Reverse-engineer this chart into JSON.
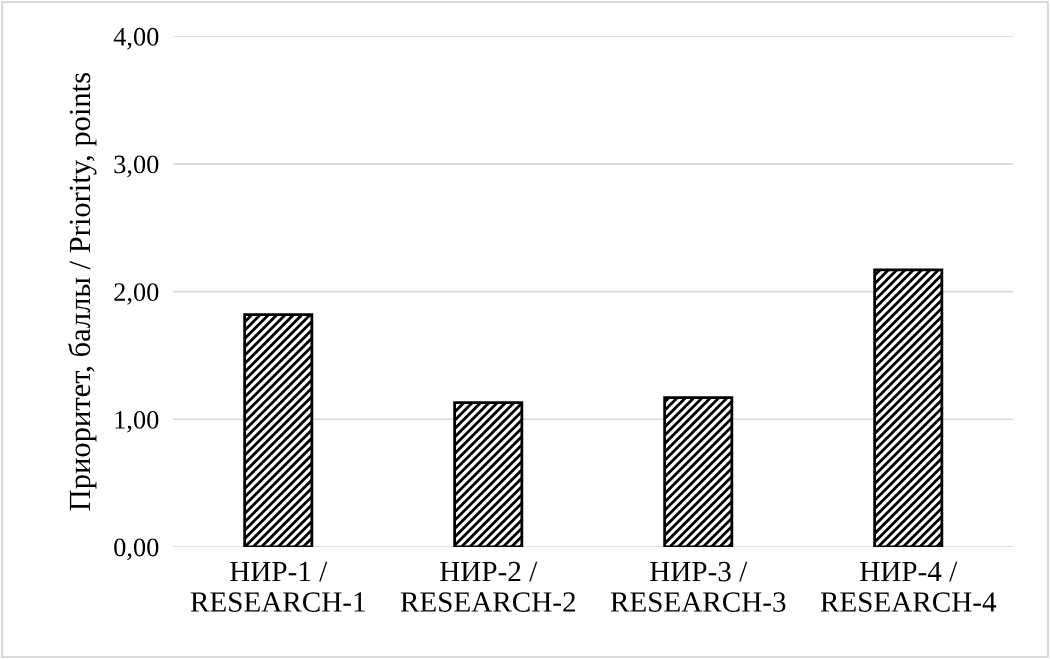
{
  "chart_data": {
    "type": "bar",
    "ylabel": "Приоритет, баллы / Priority, points",
    "categories": [
      "НИР-1 /\nRESEARCH-1",
      "НИР-2 /\nRESEARCH-2",
      "НИР-3 /\nRESEARCH-3",
      "НИР-4 /\nRESEARCH-4"
    ],
    "values": [
      1.82,
      1.13,
      1.17,
      2.17
    ],
    "color": "#000000",
    "ylim": [
      0,
      4
    ],
    "yticks": [
      {
        "value": 0,
        "label": "0,00"
      },
      {
        "value": 1,
        "label": "1,00"
      },
      {
        "value": 2,
        "label": "2,00"
      },
      {
        "value": 3,
        "label": "3,00"
      },
      {
        "value": 4,
        "label": "4,00"
      }
    ],
    "grid": "y"
  }
}
